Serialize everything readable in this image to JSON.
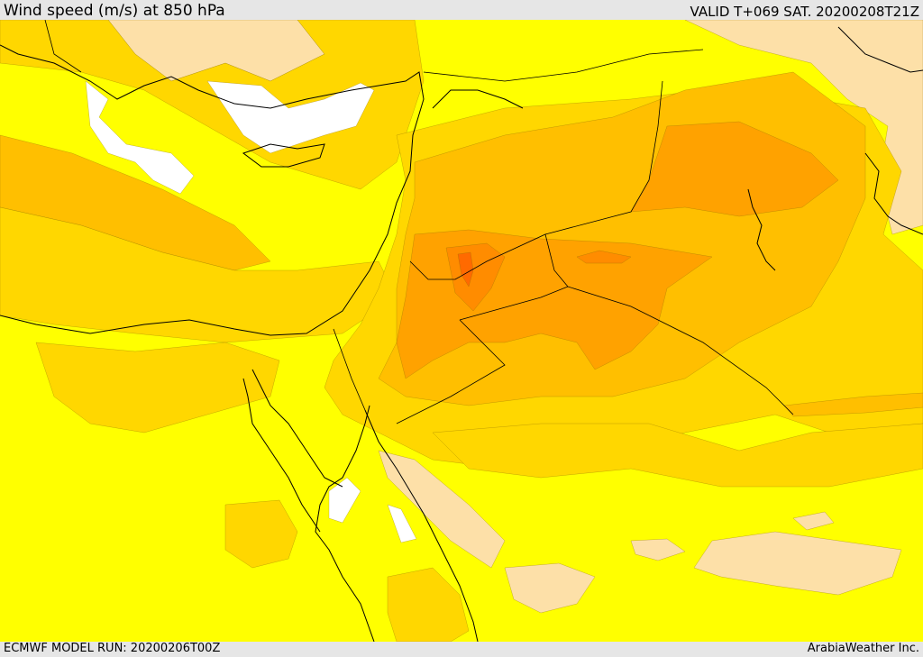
{
  "header": {
    "title": "Wind speed (m/s) at 850 hPa",
    "valid_time": "VALID T+069 SAT. 20200208T21Z"
  },
  "footer": {
    "model_run": "ECMWF MODEL RUN: 20200206T00Z",
    "credit": "ArabiaWeather Inc."
  },
  "colors": {
    "level_0": "#ffffff",
    "level_1": "#fde0a8",
    "level_2": "#ffff00",
    "level_3": "#ffd700",
    "level_4": "#ffbf00",
    "level_5": "#ffa200",
    "level_6": "#ff8c00",
    "level_7": "#ff6a00",
    "coastline": "#000000"
  }
}
